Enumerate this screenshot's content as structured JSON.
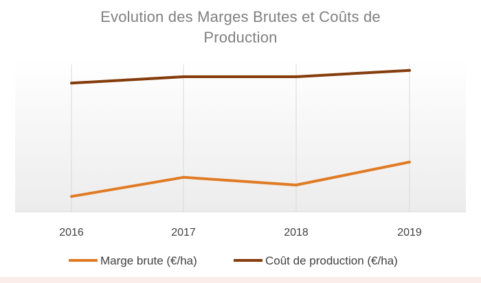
{
  "chart_data": {
    "type": "line",
    "title": "Evolution des Marges Brutes et Coûts de Production",
    "title_lines": [
      "Evolution des Marges Brutes et Coûts de",
      "Production"
    ],
    "categories": [
      "2016",
      "2017",
      "2018",
      "2019"
    ],
    "series": [
      {
        "name": "Marge brute (€/ha)",
        "color": "#e07b24",
        "values": [
          12,
          27,
          21,
          39
        ]
      },
      {
        "name": "Coût de production (€/ha)",
        "color": "#843c0c",
        "values": [
          101,
          106,
          106,
          111
        ]
      }
    ],
    "ylim": [
      0,
      120
    ],
    "y_axis_labels_visible": false,
    "grid": "vertical",
    "legend": "bottom",
    "xlabel": "",
    "ylabel": ""
  }
}
